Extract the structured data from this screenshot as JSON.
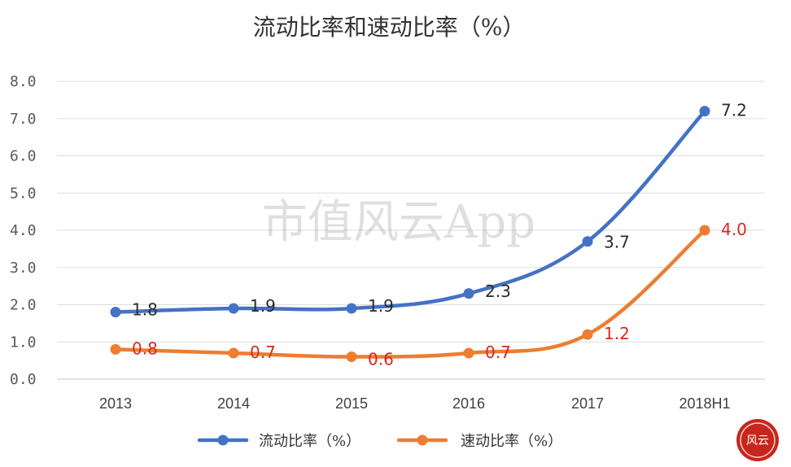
{
  "chart_data": {
    "type": "line",
    "title": "流动比率和速动比率（%）",
    "categories": [
      "2013",
      "2014",
      "2015",
      "2016",
      "2017",
      "2018H1"
    ],
    "ylim": [
      0,
      8
    ],
    "yticks": [
      "0.0",
      "1.0",
      "2.0",
      "3.0",
      "4.0",
      "5.0",
      "6.0",
      "7.0",
      "8.0"
    ],
    "grid": true,
    "legend_position": "bottom",
    "series": [
      {
        "name": "流动比率（%）",
        "values": [
          1.8,
          1.9,
          1.9,
          2.3,
          3.7,
          7.2
        ],
        "labels": [
          "1.8",
          "1.9",
          "1.9",
          "2.3",
          "3.7",
          "7.2"
        ],
        "color": "#4472c4"
      },
      {
        "name": "速动比率（%）",
        "values": [
          0.8,
          0.7,
          0.6,
          0.7,
          1.2,
          4.0
        ],
        "labels": [
          "0.8",
          "0.7",
          "0.6",
          "0.7",
          "1.2",
          "4.0"
        ],
        "color": "#ed7d31"
      }
    ],
    "label_colors": {
      "blue_series_labels": "#2b2b2b",
      "orange_series_labels": "#d62a1f"
    }
  },
  "watermark": {
    "text": "市值风云App"
  },
  "seal": {
    "text": "风云",
    "color": "#c8261c"
  }
}
